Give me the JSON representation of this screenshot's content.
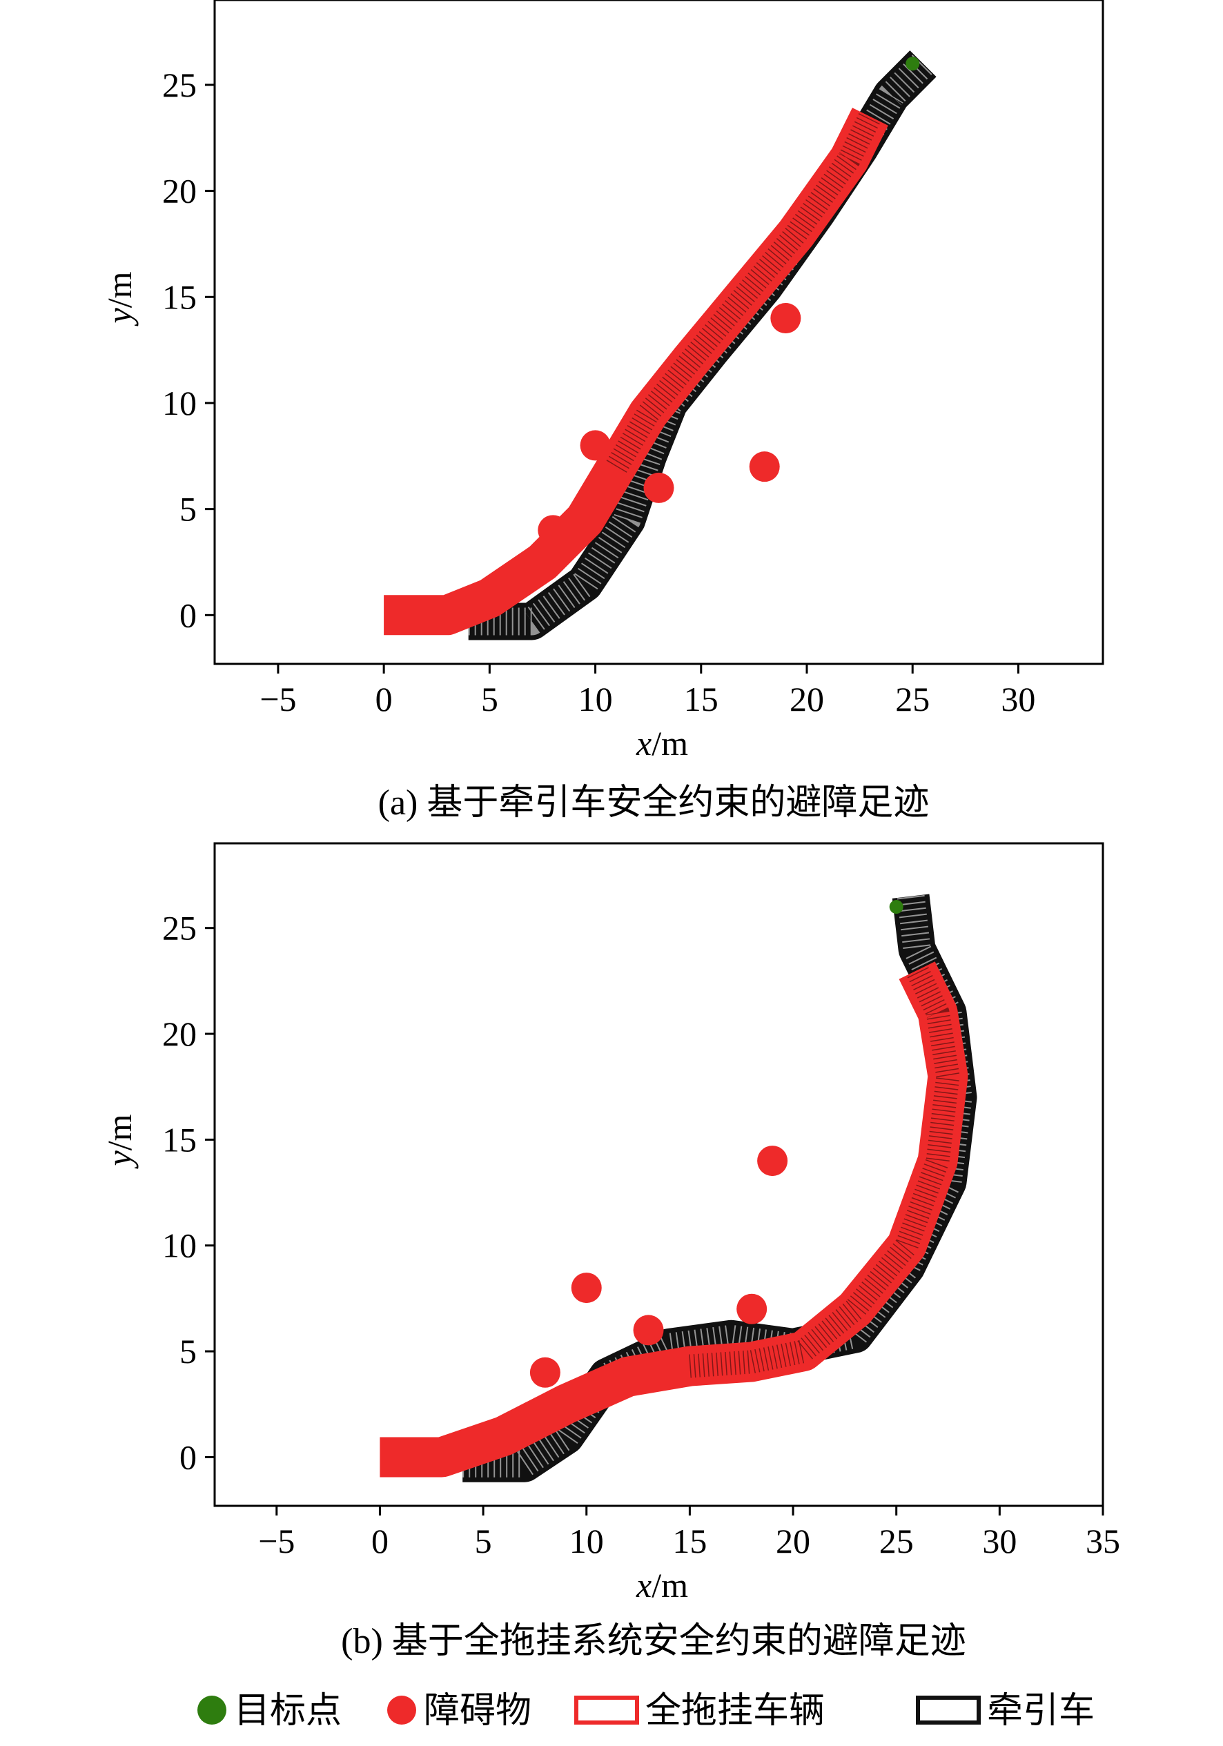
{
  "chart_data": [
    {
      "type": "scatter",
      "panel": "a",
      "caption": "(a) 基于牵引车安全约束的避障足迹",
      "xlabel_var": "x",
      "ylabel_var": "y",
      "unit": "/m",
      "xlim": [
        -8,
        34
      ],
      "ylim": [
        -2.3,
        29
      ],
      "xticks": [
        -5,
        0,
        5,
        10,
        15,
        20,
        25,
        30
      ],
      "yticks": [
        0,
        5,
        10,
        15,
        20,
        25
      ],
      "series": [
        {
          "name": "目标点",
          "kind": "goal",
          "points": [
            [
              25,
              26
            ]
          ]
        },
        {
          "name": "障碍物",
          "kind": "obstacle",
          "points": [
            [
              8,
              4
            ],
            [
              10,
              8
            ],
            [
              13,
              6
            ],
            [
              18,
              7
            ],
            [
              19,
              14
            ]
          ]
        },
        {
          "name": "全拖挂车辆",
          "kind": "trailer_path",
          "points": [
            [
              0,
              0
            ],
            [
              3,
              0
            ],
            [
              5,
              0.8
            ],
            [
              7.5,
              2.5
            ],
            [
              9.5,
              4.5
            ],
            [
              11,
              7
            ],
            [
              12.5,
              9.5
            ],
            [
              14.5,
              12
            ],
            [
              17,
              15
            ],
            [
              19.5,
              18
            ],
            [
              22,
              21.5
            ],
            [
              23,
              23.5
            ]
          ]
        },
        {
          "name": "牵引车",
          "kind": "tractor_path",
          "points": [
            [
              4,
              -0.3
            ],
            [
              7,
              -0.3
            ],
            [
              9.5,
              1.5
            ],
            [
              11.5,
              4.5
            ],
            [
              12.5,
              7.5
            ],
            [
              13.5,
              10
            ],
            [
              15.5,
              12.5
            ],
            [
              18,
              15.5
            ],
            [
              20.5,
              19
            ],
            [
              22.5,
              22
            ],
            [
              24,
              24.5
            ],
            [
              25.5,
              26
            ]
          ]
        }
      ]
    },
    {
      "type": "scatter",
      "panel": "b",
      "caption": "(b) 基于全拖挂系统安全约束的避障足迹",
      "xlabel_var": "x",
      "ylabel_var": "y",
      "unit": "/m",
      "xlim": [
        -8,
        35
      ],
      "ylim": [
        -2.3,
        29
      ],
      "xticks": [
        -5,
        0,
        5,
        10,
        15,
        20,
        25,
        30,
        35
      ],
      "yticks": [
        0,
        5,
        10,
        15,
        20,
        25
      ],
      "series": [
        {
          "name": "目标点",
          "kind": "goal",
          "points": [
            [
              25,
              26
            ]
          ]
        },
        {
          "name": "障碍物",
          "kind": "obstacle",
          "points": [
            [
              8,
              4
            ],
            [
              10,
              8
            ],
            [
              13,
              6
            ],
            [
              18,
              7
            ],
            [
              19,
              14
            ]
          ]
        },
        {
          "name": "全拖挂车辆",
          "kind": "trailer_path",
          "points": [
            [
              0,
              0
            ],
            [
              3,
              0
            ],
            [
              6,
              1
            ],
            [
              9,
              2.5
            ],
            [
              12,
              3.8
            ],
            [
              15,
              4.3
            ],
            [
              18,
              4.5
            ],
            [
              20.5,
              5
            ],
            [
              23,
              7
            ],
            [
              25.5,
              10
            ],
            [
              27,
              14
            ],
            [
              27.5,
              18
            ],
            [
              27,
              21
            ],
            [
              26,
              23
            ]
          ]
        },
        {
          "name": "牵引车",
          "kind": "tractor_path",
          "points": [
            [
              4,
              -0.3
            ],
            [
              7,
              -0.3
            ],
            [
              9,
              1
            ],
            [
              11,
              3.8
            ],
            [
              14,
              5.2
            ],
            [
              17,
              5.6
            ],
            [
              20,
              5.2
            ],
            [
              23,
              5.8
            ],
            [
              25.5,
              9
            ],
            [
              27.5,
              13
            ],
            [
              28,
              17
            ],
            [
              27.5,
              21
            ],
            [
              26,
              24
            ],
            [
              25.7,
              26.5
            ]
          ]
        }
      ]
    }
  ],
  "legend": {
    "items": [
      {
        "label": "目标点",
        "kind": "goal"
      },
      {
        "label": "障碍物",
        "kind": "obstacle"
      },
      {
        "label": "全拖挂车辆",
        "kind": "trailer"
      },
      {
        "label": "牵引车",
        "kind": "tractor"
      }
    ]
  },
  "colors": {
    "goal": "#2e7d0f",
    "obstacle": "#ee2a2a",
    "trailer": "#ee2a2a",
    "tractor": "#111111"
  }
}
